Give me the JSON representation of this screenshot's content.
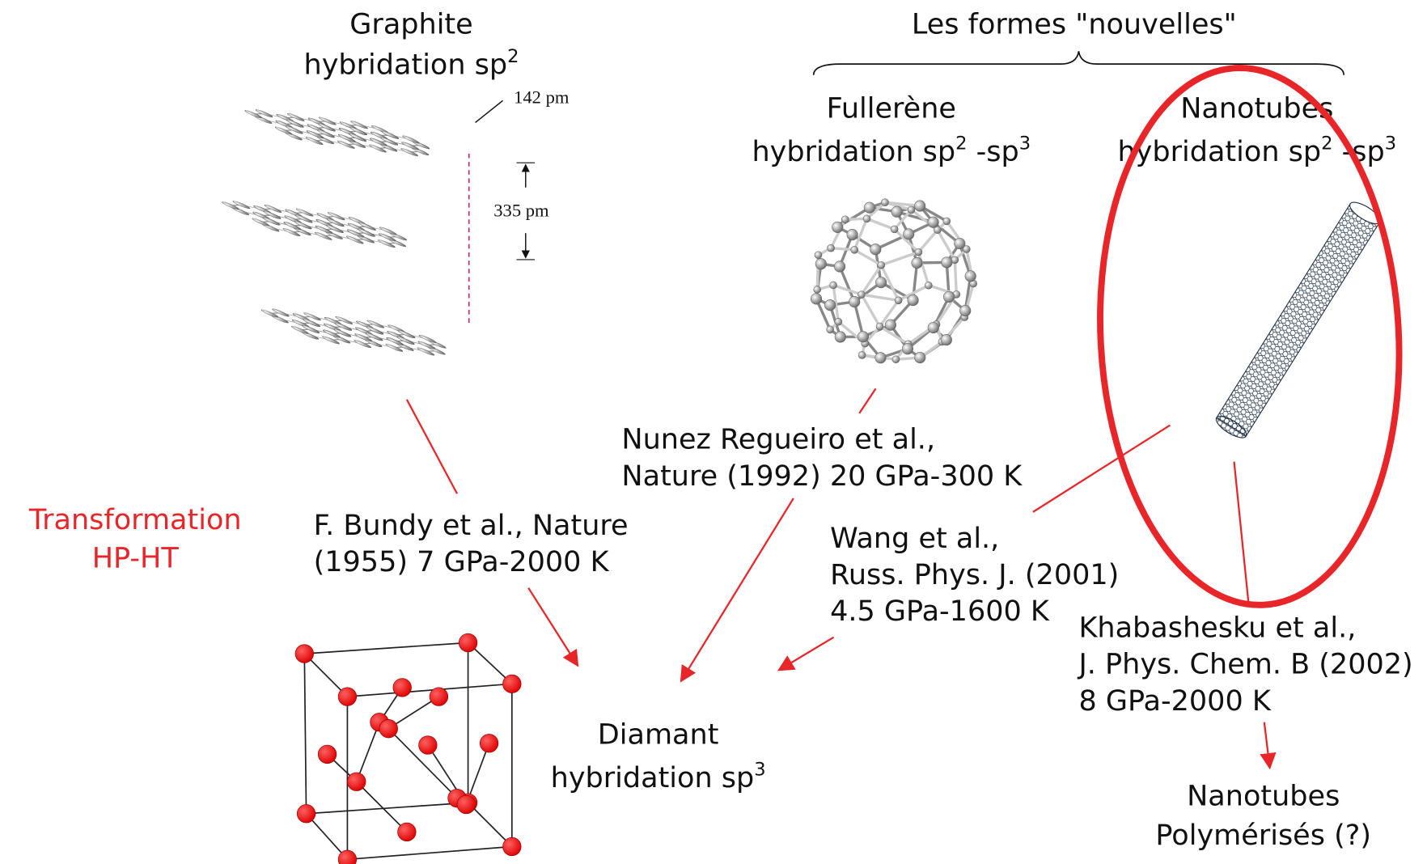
{
  "title": "Les formes \"nouvelles\"",
  "graphite": {
    "name": "Graphite",
    "hybridation": "hybridation sp",
    "sup": "2",
    "bond_length": "142 pm",
    "interlayer": "335 pm"
  },
  "fullerene": {
    "name": "Fullerène",
    "hybridation": "hybridation sp",
    "sup1": "2",
    "mid": " -sp",
    "sup2": "3"
  },
  "nanotubes": {
    "name": "Nanotubes",
    "hybridation": "hybridation sp",
    "sup1": "2",
    "mid": " -sp",
    "sup2": "3"
  },
  "diamant": {
    "name": "Diamant",
    "hybridation": "hybridation sp",
    "sup": "3"
  },
  "transformation": [
    "Transformation",
    "HP-HT"
  ],
  "references": [
    [
      "F. Bundy et al., Nature",
      "(1955) 7 GPa-2000 K"
    ],
    [
      "Nunez Regueiro et al.,",
      "Nature (1992) 20 GPa-300 K"
    ],
    [
      "Wang et al.,",
      "Russ. Phys. J. (2001)",
      "4.5 GPa-1600 K"
    ],
    [
      "Khabashesku et al.,",
      "J. Phys. Chem. B (2002)",
      "8 GPa-2000 K"
    ]
  ],
  "polymerized": [
    "Nanotubes",
    "Polymérisés (?)"
  ]
}
